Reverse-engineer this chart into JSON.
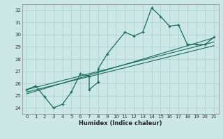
{
  "xlabel": "Humidex (Indice chaleur)",
  "ylabel": "",
  "bg_color": "#cbe8e6",
  "grid_color": "#aacfcc",
  "line_color": "#1a6b5a",
  "xlim": [
    -0.5,
    21.5
  ],
  "ylim": [
    23.5,
    32.5
  ],
  "xticks": [
    0,
    1,
    2,
    3,
    4,
    5,
    6,
    7,
    8,
    9,
    10,
    11,
    12,
    13,
    14,
    15,
    16,
    17,
    18,
    19,
    20,
    21
  ],
  "yticks": [
    24,
    25,
    26,
    27,
    28,
    29,
    30,
    31,
    32
  ],
  "main_x": [
    0,
    1,
    2,
    3,
    4,
    5,
    6,
    7,
    7,
    8,
    8,
    9,
    11,
    12,
    13,
    14,
    15,
    16,
    17,
    18,
    19,
    20,
    21
  ],
  "main_y": [
    25.5,
    25.8,
    24.9,
    24.0,
    24.3,
    25.3,
    26.8,
    26.6,
    25.5,
    26.1,
    27.2,
    28.4,
    30.2,
    29.9,
    30.2,
    32.2,
    31.5,
    30.7,
    30.8,
    29.2,
    29.2,
    29.2,
    29.8
  ],
  "line1_x": [
    0,
    21
  ],
  "line1_y": [
    25.3,
    29.1
  ],
  "line2_x": [
    0,
    21
  ],
  "line2_y": [
    25.5,
    29.4
  ],
  "line3_x": [
    0,
    21
  ],
  "line3_y": [
    25.15,
    29.75
  ]
}
